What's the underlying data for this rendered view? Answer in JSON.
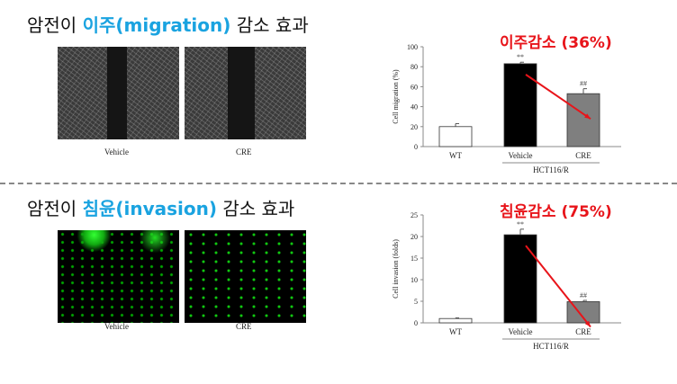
{
  "sections": [
    {
      "title_pre": "암전이 ",
      "title_hl": "이주(migration)",
      "title_post": " 감소 효과",
      "images": [
        "Vehicle",
        "CRE"
      ]
    },
    {
      "title_pre": "암전이 ",
      "title_hl": "침윤(invasion)",
      "title_post": " 감소 효과",
      "images": [
        "Vehicle",
        "CRE"
      ]
    }
  ],
  "colors": {
    "highlight": "#1aa3e0",
    "annotation": "#e8141a",
    "wt": "#ffffff",
    "vehicle": "#000000",
    "cre": "#7f7f7f"
  },
  "chart_data": [
    {
      "type": "bar",
      "ylabel": "Cell migration (%)",
      "ylim": [
        0,
        100
      ],
      "yticks": [
        0,
        20,
        40,
        60,
        80,
        100
      ],
      "categories": [
        "WT",
        "Vehicle",
        "CRE"
      ],
      "values": [
        20,
        83,
        53
      ],
      "errors": [
        3,
        1.5,
        5
      ],
      "marks": [
        "",
        "**",
        "##"
      ],
      "group_label": "HCT116/R",
      "annotation": "이주감소 (36%)"
    },
    {
      "type": "bar",
      "ylabel": "Cell invasion (folds)",
      "ylim": [
        0,
        25
      ],
      "yticks": [
        0,
        5,
        10,
        15,
        20,
        25
      ],
      "categories": [
        "WT",
        "Vehicle",
        "CRE"
      ],
      "values": [
        1,
        20.4,
        4.9
      ],
      "errors": [
        0.15,
        1.3,
        0.3
      ],
      "marks": [
        "",
        "**",
        "##"
      ],
      "group_label": "HCT116/R",
      "annotation": "침윤감소 (75%)"
    }
  ]
}
